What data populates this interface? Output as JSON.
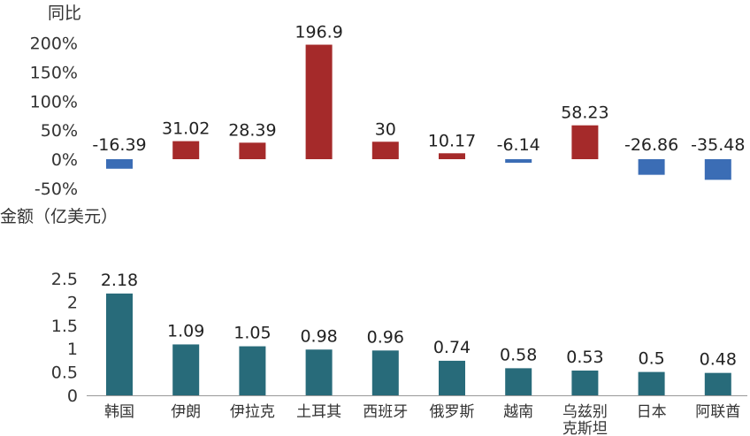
{
  "chart_data": [
    {
      "type": "bar",
      "ylabel": "同比",
      "categories": [
        "韩国",
        "伊朗",
        "伊拉克",
        "土耳其",
        "西班牙",
        "俄罗斯",
        "越南",
        "乌兹别克斯坦",
        "日本",
        "阿联酋"
      ],
      "values": [
        -16.39,
        31.02,
        28.39,
        196.9,
        30,
        10.17,
        -6.14,
        58.23,
        -26.86,
        -35.48
      ],
      "value_labels": [
        "-16.39",
        "31.02",
        "28.39",
        "196.9",
        "30",
        "10.17",
        "-6.14",
        "58.23",
        "-26.86",
        "-35.48"
      ],
      "ylim": [
        -50,
        200
      ],
      "yticks": [
        "-50%",
        "0%",
        "50%",
        "100%",
        "150%",
        "200%"
      ],
      "colors": {
        "positive": "#a52a2a",
        "negative": "#3b6db5"
      },
      "grid": false
    },
    {
      "type": "bar",
      "ylabel": "金额（亿美元）",
      "categories": [
        "韩国",
        "伊朗",
        "伊拉克",
        "土耳其",
        "西班牙",
        "俄罗斯",
        "越南",
        "乌兹别克斯坦",
        "日本",
        "阿联酋"
      ],
      "category_lines": [
        [
          "韩国"
        ],
        [
          "伊朗"
        ],
        [
          "伊拉克"
        ],
        [
          "土耳其"
        ],
        [
          "西班牙"
        ],
        [
          "俄罗斯"
        ],
        [
          "越南"
        ],
        [
          "乌兹别",
          "克斯坦"
        ],
        [
          "日本"
        ],
        [
          "阿联酋"
        ]
      ],
      "values": [
        2.18,
        1.09,
        1.05,
        0.98,
        0.96,
        0.74,
        0.58,
        0.53,
        0.5,
        0.48
      ],
      "value_labels": [
        "2.18",
        "1.09",
        "1.05",
        "0.98",
        "0.96",
        "0.74",
        "0.58",
        "0.53",
        "0.5",
        "0.48"
      ],
      "ylim": [
        0,
        2.5
      ],
      "yticks": [
        "0",
        "0.5",
        "1",
        "1.5",
        "2",
        "2.5"
      ],
      "colors": {
        "bar": "#286b7a",
        "axis": "#999999"
      },
      "grid": false
    }
  ]
}
